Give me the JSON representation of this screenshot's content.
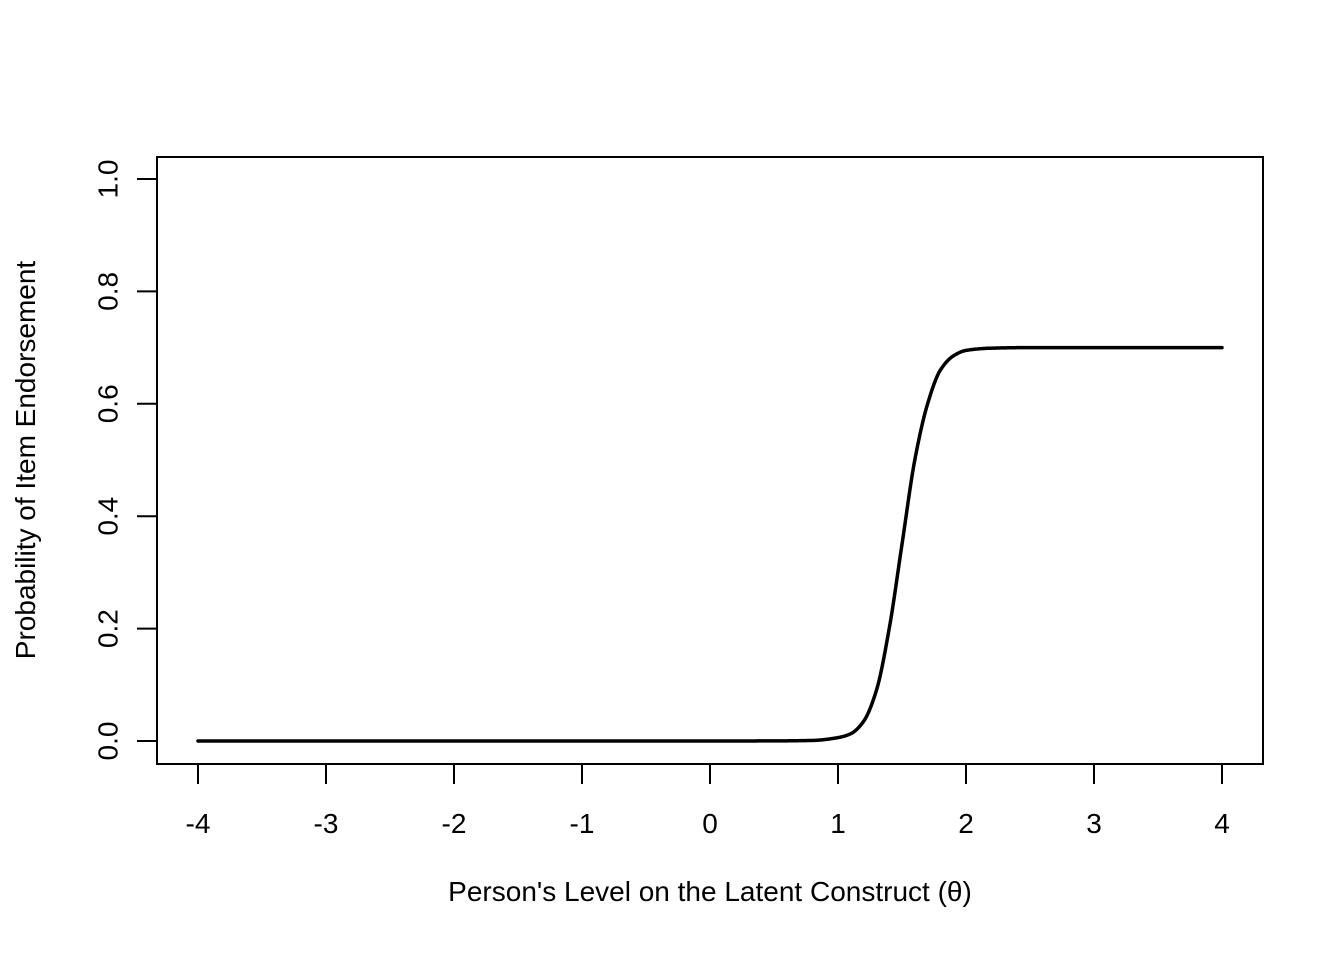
{
  "chart_data": {
    "type": "line",
    "title": "",
    "xlabel": "Person's Level on the Latent Construct (θ)",
    "ylabel": "Probability of Item Endorsement",
    "xlim": [
      -4,
      4
    ],
    "ylim": [
      0,
      1
    ],
    "x_ticks": [
      -4,
      -3,
      -2,
      -1,
      0,
      1,
      2,
      3,
      4
    ],
    "x_tick_labels": [
      "-4",
      "-3",
      "-2",
      "-1",
      "0",
      "1",
      "2",
      "3",
      "4"
    ],
    "y_ticks": [
      0,
      0.2,
      0.4,
      0.6,
      0.8,
      1.0
    ],
    "y_tick_labels": [
      "0.0",
      "0.2",
      "0.4",
      "0.6",
      "0.8",
      "1.0"
    ],
    "grid": false,
    "legend": "none",
    "line_color": "#000000",
    "series": [
      {
        "x": [
          -4,
          -3,
          -2,
          -1,
          0,
          0.5,
          0.8,
          1.0,
          1.1,
          1.2,
          1.3,
          1.4,
          1.5,
          1.6,
          1.7,
          1.8,
          1.9,
          2.0,
          2.2,
          2.5,
          3,
          3.5,
          4
        ],
        "y": [
          0,
          0,
          0,
          0,
          0,
          0.0002,
          0.001,
          0.006,
          0.013,
          0.035,
          0.09,
          0.2,
          0.35,
          0.5,
          0.6,
          0.66,
          0.685,
          0.695,
          0.699,
          0.7,
          0.7,
          0.7,
          0.7
        ]
      }
    ]
  }
}
